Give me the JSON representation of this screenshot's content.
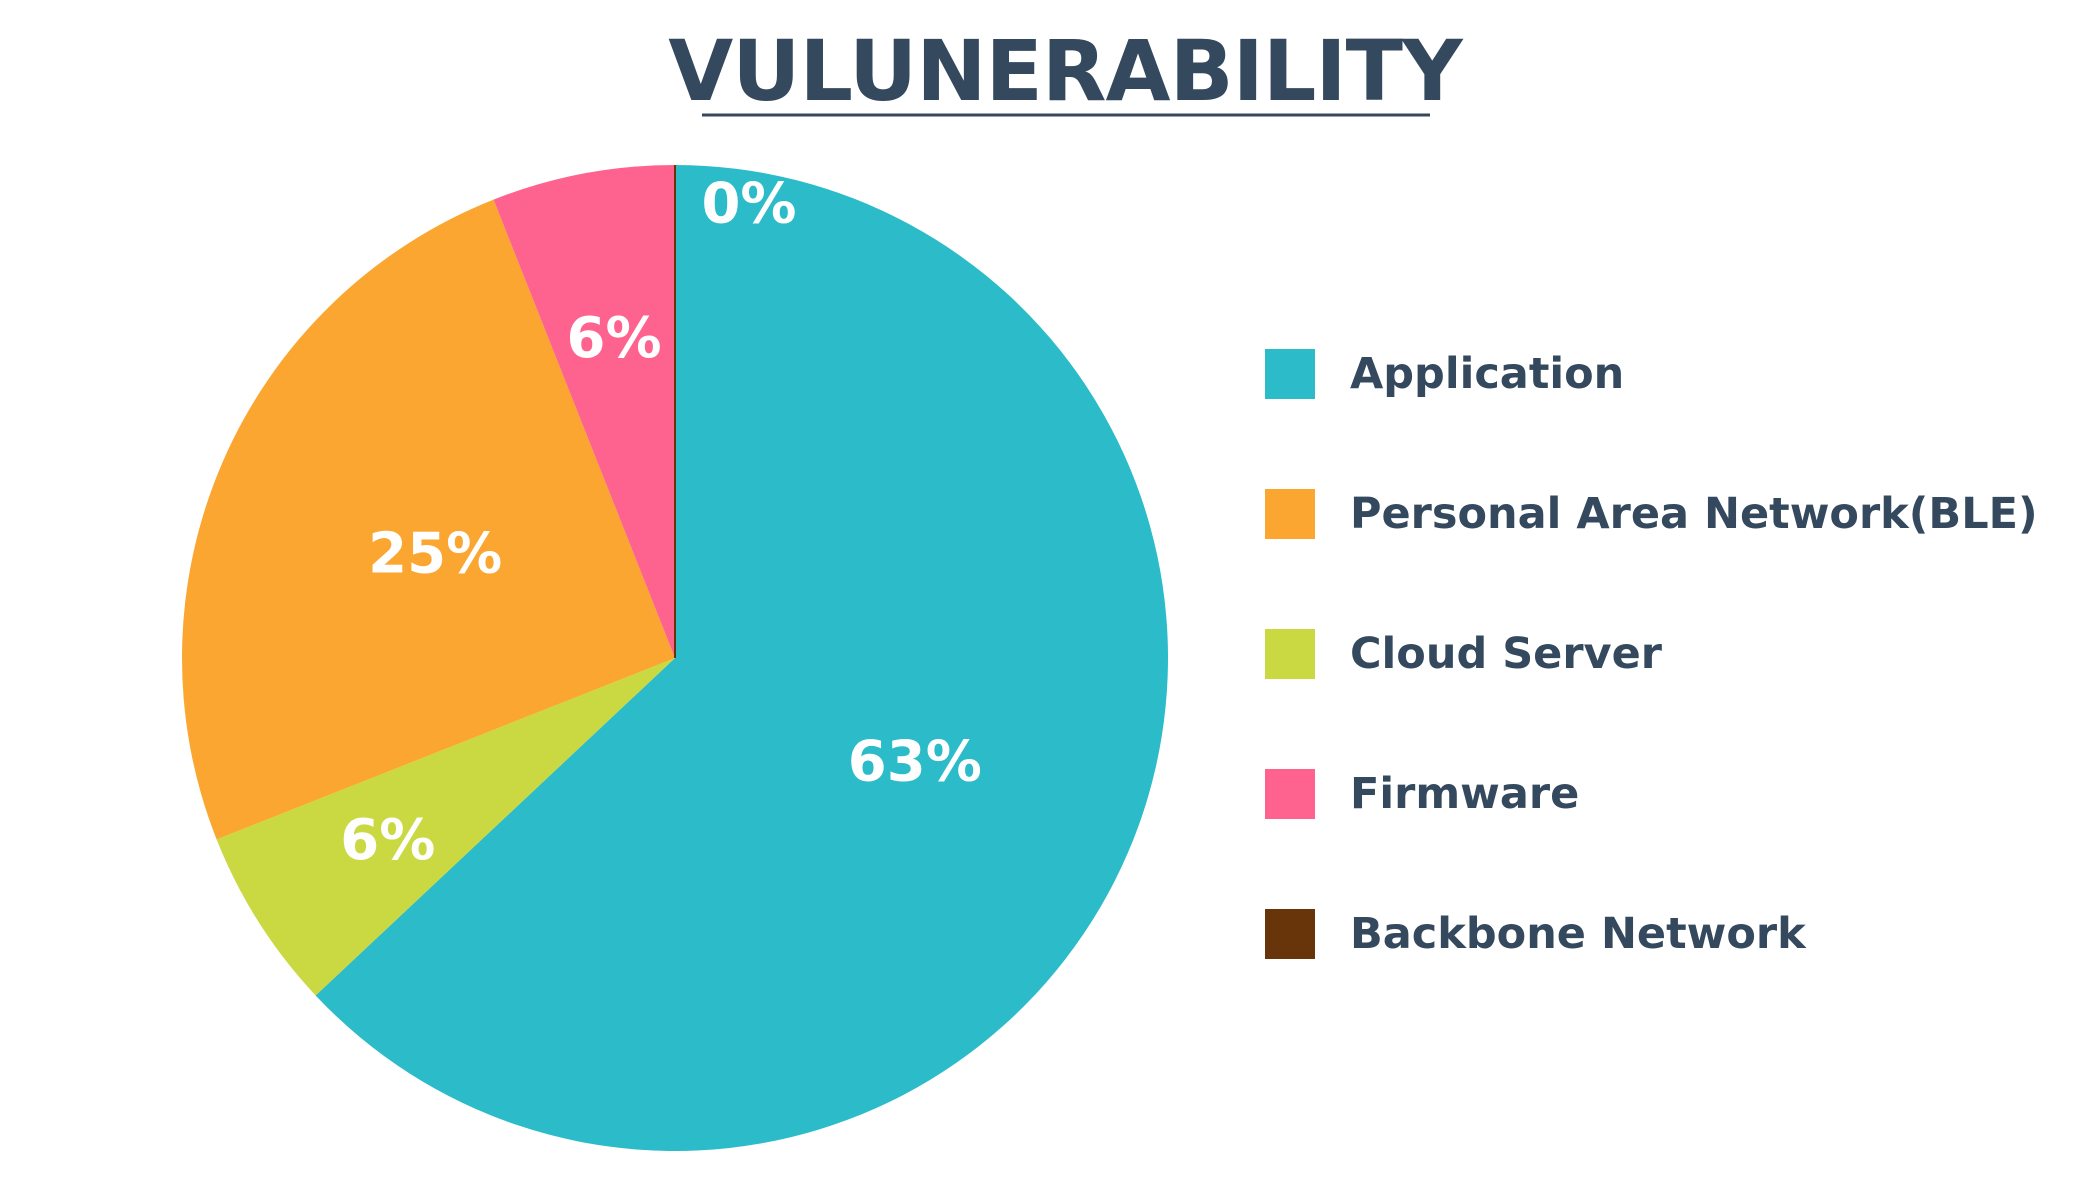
{
  "chart_data": {
    "type": "pie",
    "title": "VULUNERABILITY",
    "slices": [
      {
        "label": "Application",
        "value": 63,
        "display": "63%",
        "color": "#2bbbc9"
      },
      {
        "label": "Cloud Server",
        "value": 6,
        "display": "6%",
        "color": "#cad942"
      },
      {
        "label": "Personal Area Network(BLE)",
        "value": 25,
        "display": "25%",
        "color": "#fba630"
      },
      {
        "label": "Firmware",
        "value": 6,
        "display": "6%",
        "color": "#fe6390"
      },
      {
        "label": "Backbone Network",
        "value": 0,
        "display": "0%",
        "color": "#673509"
      }
    ],
    "legend": {
      "placement": "right",
      "entries": [
        {
          "label": "Application",
          "color": "#2bbbc9"
        },
        {
          "label": "Personal Area Network(BLE)",
          "color": "#fba630"
        },
        {
          "label": "Cloud Server",
          "color": "#cad942"
        },
        {
          "label": "Firmware",
          "color": "#fe6390"
        },
        {
          "label": "Backbone Network",
          "color": "#673509"
        }
      ]
    }
  },
  "colors": {
    "title": "#34495e",
    "legend_text": "#34495e",
    "divider": "#34495e"
  }
}
